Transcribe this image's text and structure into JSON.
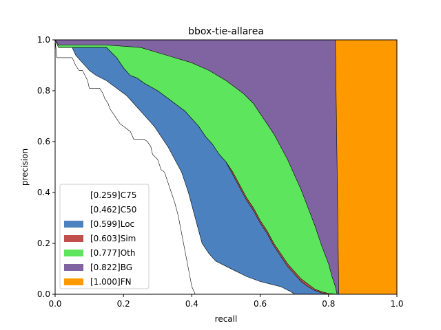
{
  "chart_data": {
    "type": "area",
    "title": "bbox-tie-allarea",
    "xlabel": "recall",
    "ylabel": "precision",
    "xlim": [
      0,
      1
    ],
    "ylim": [
      0,
      1
    ],
    "x_ticks": [
      "0.0",
      "0.2",
      "0.4",
      "0.6",
      "0.8",
      "1.0"
    ],
    "y_ticks": [
      "0.0",
      "0.2",
      "0.4",
      "0.6",
      "0.8",
      "1.0"
    ],
    "grid": false,
    "legend_position": "lower-left",
    "series": [
      {
        "name": "[0.259]C75",
        "color": "#ffffff",
        "points": [
          [
            0.0,
            1.0
          ],
          [
            0.005,
            0.93
          ],
          [
            0.05,
            0.93
          ],
          [
            0.06,
            0.9
          ],
          [
            0.07,
            0.88
          ],
          [
            0.08,
            0.88
          ],
          [
            0.095,
            0.84
          ],
          [
            0.1,
            0.81
          ],
          [
            0.13,
            0.81
          ],
          [
            0.14,
            0.79
          ],
          [
            0.145,
            0.77
          ],
          [
            0.155,
            0.75
          ],
          [
            0.16,
            0.73
          ],
          [
            0.18,
            0.69
          ],
          [
            0.19,
            0.67
          ],
          [
            0.2,
            0.66
          ],
          [
            0.22,
            0.64
          ],
          [
            0.23,
            0.61
          ],
          [
            0.26,
            0.61
          ],
          [
            0.27,
            0.6
          ],
          [
            0.28,
            0.58
          ],
          [
            0.285,
            0.55
          ],
          [
            0.3,
            0.53
          ],
          [
            0.31,
            0.49
          ],
          [
            0.32,
            0.48
          ],
          [
            0.33,
            0.44
          ],
          [
            0.34,
            0.4
          ],
          [
            0.35,
            0.36
          ],
          [
            0.36,
            0.31
          ],
          [
            0.37,
            0.24
          ],
          [
            0.38,
            0.17
          ],
          [
            0.39,
            0.1
          ],
          [
            0.4,
            0.03
          ],
          [
            0.41,
            0.0
          ]
        ]
      },
      {
        "name": "[0.462]C50",
        "color": "#ffffff",
        "points": [
          [
            0.0,
            1.0
          ],
          [
            0.01,
            0.97
          ],
          [
            0.05,
            0.97
          ],
          [
            0.06,
            0.94
          ],
          [
            0.08,
            0.91
          ],
          [
            0.1,
            0.88
          ],
          [
            0.12,
            0.86
          ],
          [
            0.15,
            0.84
          ],
          [
            0.17,
            0.82
          ],
          [
            0.19,
            0.8
          ],
          [
            0.21,
            0.78
          ],
          [
            0.23,
            0.75
          ],
          [
            0.25,
            0.72
          ],
          [
            0.27,
            0.69
          ],
          [
            0.29,
            0.66
          ],
          [
            0.31,
            0.62
          ],
          [
            0.33,
            0.58
          ],
          [
            0.35,
            0.53
          ],
          [
            0.37,
            0.48
          ],
          [
            0.38,
            0.44
          ],
          [
            0.39,
            0.4
          ],
          [
            0.4,
            0.35
          ],
          [
            0.41,
            0.3
          ],
          [
            0.42,
            0.25
          ],
          [
            0.43,
            0.2
          ],
          [
            0.45,
            0.16
          ],
          [
            0.47,
            0.13
          ],
          [
            0.5,
            0.11
          ],
          [
            0.53,
            0.09
          ],
          [
            0.56,
            0.07
          ],
          [
            0.6,
            0.05
          ],
          [
            0.63,
            0.04
          ],
          [
            0.66,
            0.03
          ],
          [
            0.69,
            0.01
          ],
          [
            0.7,
            0.0
          ]
        ]
      },
      {
        "name": "[0.599]Loc",
        "color": "#4c81bf",
        "points": [
          [
            0.0,
            1.0
          ],
          [
            0.01,
            0.97
          ],
          [
            0.15,
            0.97
          ],
          [
            0.18,
            0.93
          ],
          [
            0.2,
            0.89
          ],
          [
            0.22,
            0.86
          ],
          [
            0.24,
            0.85
          ],
          [
            0.26,
            0.83
          ],
          [
            0.3,
            0.8
          ],
          [
            0.32,
            0.78
          ],
          [
            0.34,
            0.76
          ],
          [
            0.36,
            0.74
          ],
          [
            0.38,
            0.72
          ],
          [
            0.4,
            0.69
          ],
          [
            0.42,
            0.66
          ],
          [
            0.44,
            0.62
          ],
          [
            0.46,
            0.59
          ],
          [
            0.48,
            0.55
          ],
          [
            0.5,
            0.52
          ],
          [
            0.52,
            0.47
          ],
          [
            0.54,
            0.42
          ],
          [
            0.56,
            0.37
          ],
          [
            0.58,
            0.33
          ],
          [
            0.6,
            0.28
          ],
          [
            0.62,
            0.24
          ],
          [
            0.64,
            0.19
          ],
          [
            0.66,
            0.15
          ],
          [
            0.68,
            0.11
          ],
          [
            0.7,
            0.08
          ],
          [
            0.72,
            0.05
          ],
          [
            0.74,
            0.03
          ],
          [
            0.76,
            0.015
          ],
          [
            0.78,
            0.005
          ],
          [
            0.8,
            0.0
          ],
          [
            0.83,
            0.0
          ]
        ]
      },
      {
        "name": "[0.603]Sim",
        "color": "#c0504d",
        "points": [
          [
            0.0,
            1.0
          ],
          [
            0.01,
            0.97
          ],
          [
            0.15,
            0.97
          ],
          [
            0.18,
            0.93
          ],
          [
            0.2,
            0.89
          ],
          [
            0.22,
            0.86
          ],
          [
            0.24,
            0.85
          ],
          [
            0.26,
            0.83
          ],
          [
            0.3,
            0.8
          ],
          [
            0.32,
            0.78
          ],
          [
            0.34,
            0.76
          ],
          [
            0.36,
            0.74
          ],
          [
            0.38,
            0.72
          ],
          [
            0.4,
            0.69
          ],
          [
            0.42,
            0.66
          ],
          [
            0.44,
            0.62
          ],
          [
            0.46,
            0.59
          ],
          [
            0.48,
            0.55
          ],
          [
            0.5,
            0.52
          ],
          [
            0.52,
            0.48
          ],
          [
            0.54,
            0.43
          ],
          [
            0.56,
            0.38
          ],
          [
            0.58,
            0.34
          ],
          [
            0.6,
            0.29
          ],
          [
            0.62,
            0.25
          ],
          [
            0.64,
            0.2
          ],
          [
            0.66,
            0.16
          ],
          [
            0.68,
            0.12
          ],
          [
            0.7,
            0.09
          ],
          [
            0.72,
            0.06
          ],
          [
            0.74,
            0.04
          ],
          [
            0.76,
            0.02
          ],
          [
            0.78,
            0.01
          ],
          [
            0.8,
            0.003
          ],
          [
            0.83,
            0.0
          ]
        ]
      },
      {
        "name": "[0.777]Oth",
        "color": "#5ee55e",
        "points": [
          [
            0.0,
            1.0
          ],
          [
            0.01,
            0.98
          ],
          [
            0.15,
            0.98
          ],
          [
            0.25,
            0.97
          ],
          [
            0.3,
            0.95
          ],
          [
            0.35,
            0.93
          ],
          [
            0.4,
            0.91
          ],
          [
            0.45,
            0.88
          ],
          [
            0.5,
            0.84
          ],
          [
            0.55,
            0.79
          ],
          [
            0.58,
            0.75
          ],
          [
            0.6,
            0.71
          ],
          [
            0.62,
            0.67
          ],
          [
            0.64,
            0.63
          ],
          [
            0.66,
            0.58
          ],
          [
            0.68,
            0.53
          ],
          [
            0.7,
            0.47
          ],
          [
            0.72,
            0.41
          ],
          [
            0.74,
            0.34
          ],
          [
            0.76,
            0.27
          ],
          [
            0.78,
            0.19
          ],
          [
            0.8,
            0.12
          ],
          [
            0.81,
            0.07
          ],
          [
            0.82,
            0.03
          ],
          [
            0.825,
            0.0
          ]
        ]
      },
      {
        "name": "[0.822]BG",
        "color": "#8064a2",
        "points": [
          [
            0.0,
            1.0
          ],
          [
            0.82,
            1.0
          ],
          [
            0.83,
            0.0
          ]
        ]
      },
      {
        "name": "[1.000]FN",
        "color": "#ff9900",
        "points": [
          [
            0.0,
            1.0
          ],
          [
            1.0,
            1.0
          ],
          [
            1.0,
            0.0
          ]
        ]
      }
    ]
  }
}
